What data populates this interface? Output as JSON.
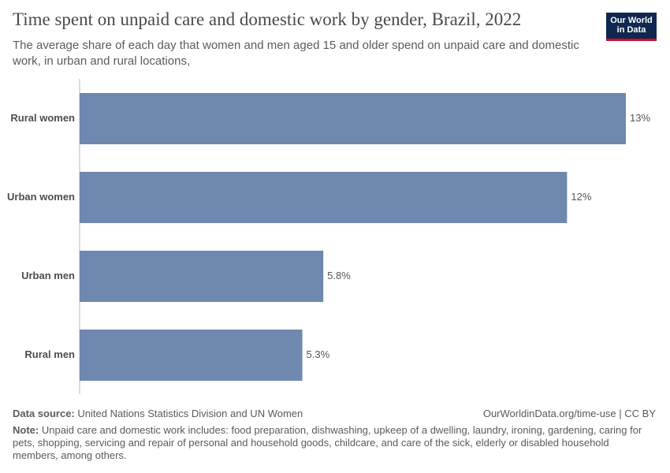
{
  "chart_data": {
    "type": "bar",
    "orientation": "horizontal",
    "title": "Time spent on unpaid care and domestic work by gender, Brazil, 2022",
    "subtitle": "The average share of each day that women and men aged 15 and older spend on unpaid care and domestic work, in urban and rural locations,",
    "categories": [
      "Rural women",
      "Urban women",
      "Urban men",
      "Rural men"
    ],
    "values": [
      13.0,
      11.6,
      5.8,
      5.3
    ],
    "value_labels": [
      "13%",
      "12%",
      "5.8%",
      "5.3%"
    ],
    "color": "#6f88b0",
    "xlim": [
      0,
      13
    ],
    "source_label": "Data source:",
    "source": "United Nations Statistics Division and UN Women",
    "url": "OurWorldinData.org/time-use | CC BY",
    "note_label": "Note:",
    "note": "Unpaid care and domestic work includes: food preparation, dishwashing, upkeep of a dwelling, laundry, ironing, gardening, caring for pets, shopping, servicing and repair of personal and household goods, childcare, and care of the sick, elderly or disabled household members, among others.",
    "logo": [
      "Our World",
      "in Data"
    ]
  }
}
